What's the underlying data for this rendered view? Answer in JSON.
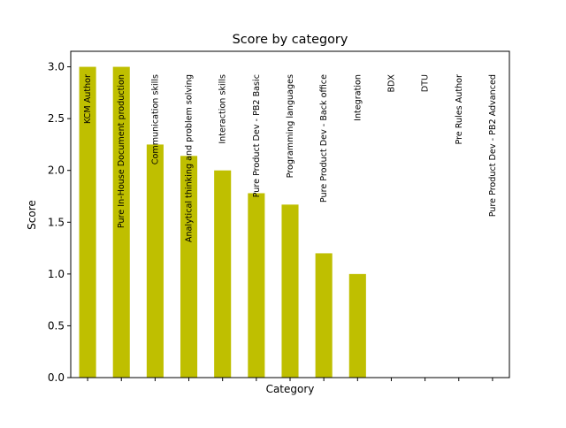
{
  "chart_data": {
    "type": "bar",
    "title": "Score by category",
    "xlabel": "Category",
    "ylabel": "Score",
    "ylim": [
      0,
      3.15
    ],
    "yticks": [
      "0.0",
      "0.5",
      "1.0",
      "1.5",
      "2.0",
      "2.5",
      "3.0"
    ],
    "grid": false,
    "bar_color": "#bfbf00",
    "categories": [
      "KCM Author",
      "Pure In-House Document production",
      "Communication skills",
      "Analytical thinking and problem solving",
      "Interaction skills",
      "Pure Product Dev - PB2 Basic",
      "Programming languages",
      "Pure Product Dev - Back office",
      "Integration",
      "BDX",
      "DTU",
      "Pre Rules Author",
      "Pure Product Dev - PB2 Advanced"
    ],
    "values": [
      3.0,
      3.0,
      2.25,
      2.14,
      2.0,
      1.78,
      1.67,
      1.2,
      1.0,
      0,
      0,
      0,
      0
    ]
  }
}
